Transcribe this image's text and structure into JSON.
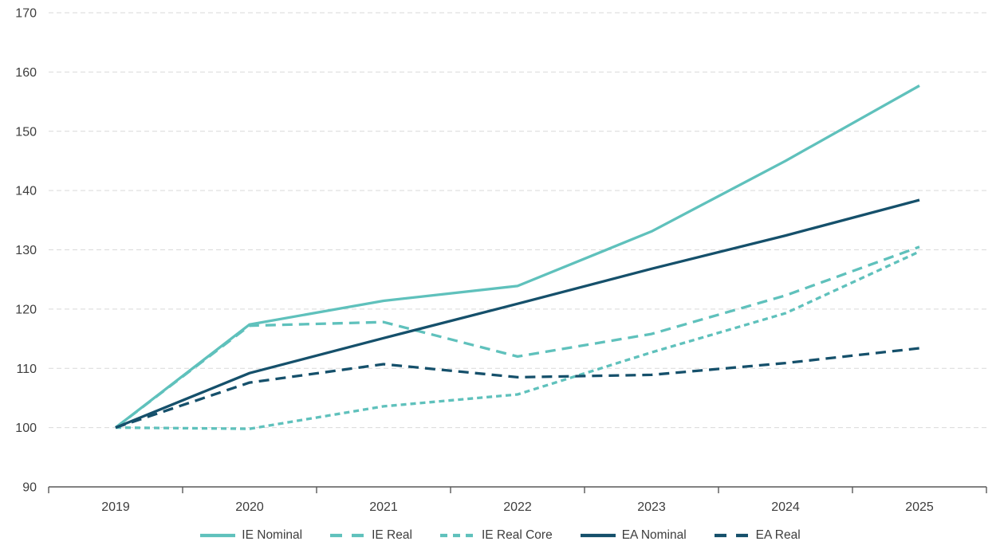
{
  "chart_data": {
    "type": "line",
    "title": "",
    "xlabel": "",
    "ylabel": "",
    "x_categories": [
      "2019",
      "2020",
      "2021",
      "2022",
      "2023",
      "2024",
      "2025"
    ],
    "y_ticks": [
      "90",
      "100",
      "110",
      "120",
      "130",
      "140",
      "150",
      "160",
      "170"
    ],
    "ylim": [
      90,
      170
    ],
    "grid": "horizontal-dashed",
    "legend_position": "bottom",
    "series": [
      {
        "name": "IE Nominal",
        "color": "#5FC1BC",
        "style": "solid",
        "values": [
          100,
          117.4,
          121.4,
          123.9,
          133.1,
          145.0,
          157.7
        ]
      },
      {
        "name": "IE Real",
        "color": "#5FC1BC",
        "style": "dash",
        "values": [
          100,
          117.2,
          117.8,
          112.0,
          115.8,
          122.3,
          130.5
        ]
      },
      {
        "name": "IE Real Core",
        "color": "#5FC1BC",
        "style": "short-dash",
        "values": [
          100,
          99.8,
          103.6,
          105.6,
          112.7,
          119.3,
          129.7
        ]
      },
      {
        "name": "EA Nominal",
        "color": "#15506B",
        "style": "solid",
        "values": [
          100,
          109.2,
          115.1,
          120.9,
          126.8,
          132.4,
          138.4
        ]
      },
      {
        "name": "EA Real",
        "color": "#15506B",
        "style": "dash",
        "values": [
          100,
          107.6,
          110.7,
          108.5,
          108.9,
          110.9,
          113.4
        ]
      }
    ],
    "colors": {
      "grid": "#d9d9d9",
      "axis": "#595959",
      "text": "#3d3d3d"
    }
  }
}
